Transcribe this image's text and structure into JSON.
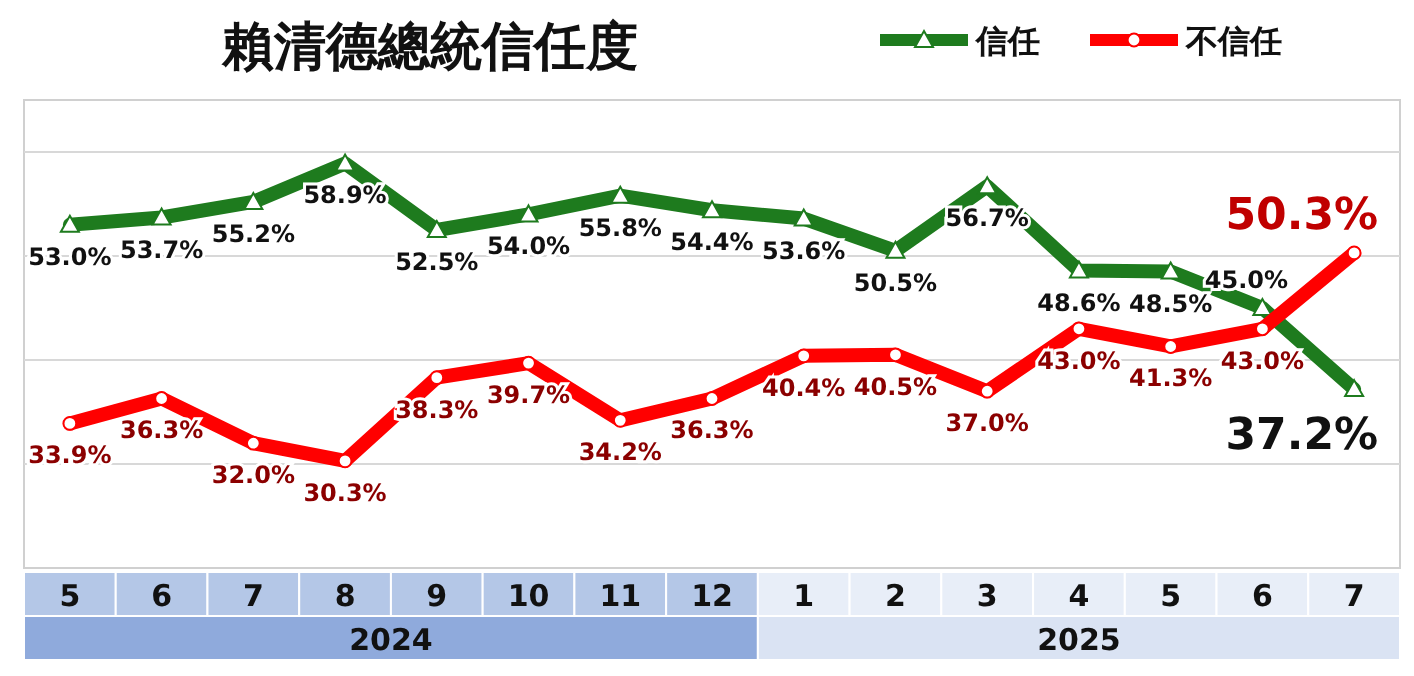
{
  "chart_data": {
    "type": "line",
    "title": "賴清德總統信任度",
    "categories": [
      "5",
      "6",
      "7",
      "8",
      "9",
      "10",
      "11",
      "12",
      "1",
      "2",
      "3",
      "4",
      "5",
      "6",
      "7"
    ],
    "series": [
      {
        "name": "信任",
        "color": "#1e7b1e",
        "marker": "triangle",
        "values": [
          53.0,
          53.7,
          55.2,
          58.9,
          52.5,
          54.0,
          55.8,
          54.4,
          53.6,
          50.5,
          56.7,
          48.6,
          48.5,
          45.0,
          37.2
        ],
        "value_labels": [
          "53.0%",
          "53.7%",
          "55.2%",
          "58.9%",
          "52.5%",
          "54.0%",
          "55.8%",
          "54.4%",
          "53.6%",
          "50.5%",
          "56.7%",
          "48.6%",
          "48.5%",
          "45.0%",
          "37.2%"
        ]
      },
      {
        "name": "不信任",
        "color": "#ff0000",
        "marker": "circle",
        "values": [
          33.9,
          36.3,
          32.0,
          30.3,
          38.3,
          39.7,
          34.2,
          36.3,
          40.4,
          40.5,
          37.0,
          43.0,
          41.3,
          43.0,
          50.3
        ],
        "value_labels": [
          "33.9%",
          "36.3%",
          "32.0%",
          "30.3%",
          "38.3%",
          "39.7%",
          "34.2%",
          "36.3%",
          "40.4%",
          "40.5%",
          "37.0%",
          "43.0%",
          "41.3%",
          "43.0%",
          "50.3%"
        ]
      }
    ],
    "annotations": [
      "2024",
      "2025"
    ],
    "ylim": [
      20,
      65
    ],
    "yticks": [
      {
        "value": 30,
        "label": null
      },
      {
        "value": 40,
        "label": null
      },
      {
        "value": 50,
        "label": null
      },
      {
        "value": 60,
        "label": null
      }
    ],
    "tick_labels": "x",
    "grid": "y",
    "legend": "top right",
    "line_style": "solid"
  }
}
